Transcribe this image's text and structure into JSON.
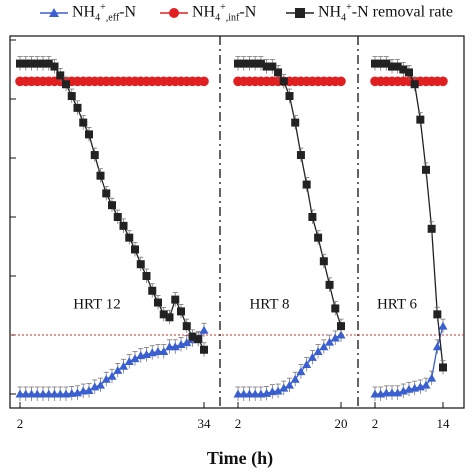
{
  "legend": {
    "eff_species": "NH",
    "eff_sub": "4",
    "eff_sup": "+",
    "eff_tail": ",eff",
    "eff_rest": "-N",
    "inf_species": "NH",
    "inf_sub": "4",
    "inf_sup": "+",
    "inf_tail": ",inf",
    "inf_rest": "-N",
    "rem_species": "NH",
    "rem_sub": "4",
    "rem_sup": "+",
    "rem_rest": "-N removal rate"
  },
  "colors": {
    "effluent": "#3a5fd0",
    "influent": "#e02020",
    "removal": "#222222",
    "reference_line": "#c0302a"
  },
  "chart_data": {
    "type": "line",
    "xlabel": "Time (h)",
    "y_axis_range": [
      0,
      6
    ],
    "reference_line_y": 1.0,
    "grid": false,
    "legend_position": "top",
    "panels": [
      {
        "label": "HRT  12",
        "x_ticks": [
          "2",
          "34"
        ],
        "x": [
          2,
          3,
          4,
          5,
          6,
          7,
          8,
          9,
          10,
          11,
          12,
          13,
          14,
          15,
          16,
          17,
          18,
          19,
          20,
          21,
          22,
          23,
          24,
          25,
          26,
          27,
          28,
          29,
          30,
          31,
          32,
          33,
          34
        ],
        "series": [
          {
            "name": "NH4+,eff-N",
            "values": [
              0.0,
              0.0,
              0.0,
              0.0,
              0.0,
              0.0,
              0.0,
              0.0,
              0.0,
              0.01,
              0.02,
              0.05,
              0.06,
              0.12,
              0.15,
              0.25,
              0.3,
              0.4,
              0.47,
              0.55,
              0.6,
              0.65,
              0.67,
              0.7,
              0.72,
              0.72,
              0.8,
              0.8,
              0.84,
              0.87,
              0.92,
              0.94,
              1.08
            ]
          },
          {
            "name": "NH4+,inf-N",
            "values": [
              5.3,
              5.3,
              5.3,
              5.3,
              5.3,
              5.3,
              5.3,
              5.3,
              5.3,
              5.3,
              5.3,
              5.3,
              5.3,
              5.3,
              5.3,
              5.3,
              5.3,
              5.3,
              5.3,
              5.3,
              5.3,
              5.3,
              5.3,
              5.3,
              5.3,
              5.3,
              5.3,
              5.3,
              5.3,
              5.3,
              5.3,
              5.3,
              5.3
            ]
          },
          {
            "name": "NH4+-N removal rate",
            "values": [
              5.6,
              5.6,
              5.6,
              5.6,
              5.6,
              5.6,
              5.55,
              5.4,
              5.25,
              5.05,
              4.85,
              4.6,
              4.4,
              4.05,
              3.7,
              3.4,
              3.2,
              3.0,
              2.85,
              2.65,
              2.45,
              2.2,
              2.0,
              1.75,
              1.55,
              1.35,
              1.3,
              1.6,
              1.4,
              1.15,
              0.97,
              0.93,
              0.75
            ]
          }
        ]
      },
      {
        "label": "HRT  8",
        "x_ticks": [
          "2",
          "20"
        ],
        "x": [
          2,
          3,
          4,
          5,
          6,
          7,
          8,
          9,
          10,
          11,
          12,
          13,
          14,
          15,
          16,
          17,
          18,
          19,
          20
        ],
        "series": [
          {
            "name": "NH4+,eff-N",
            "values": [
              0.0,
              0.0,
              0.0,
              0.0,
              0.0,
              0.01,
              0.04,
              0.05,
              0.1,
              0.15,
              0.25,
              0.38,
              0.5,
              0.62,
              0.72,
              0.8,
              0.88,
              0.95,
              1.0
            ]
          },
          {
            "name": "NH4+,inf-N",
            "values": [
              5.3,
              5.3,
              5.3,
              5.3,
              5.3,
              5.3,
              5.3,
              5.3,
              5.3,
              5.3,
              5.3,
              5.3,
              5.3,
              5.3,
              5.3,
              5.3,
              5.3,
              5.3,
              5.3
            ]
          },
          {
            "name": "NH4+-N removal rate",
            "values": [
              5.6,
              5.6,
              5.6,
              5.6,
              5.6,
              5.55,
              5.55,
              5.45,
              5.3,
              5.05,
              4.6,
              4.05,
              3.55,
              3.0,
              2.65,
              2.25,
              1.85,
              1.45,
              1.15
            ]
          }
        ]
      },
      {
        "label": "HRT  6",
        "x_ticks": [
          "2",
          "14"
        ],
        "x": [
          2,
          3,
          4,
          5,
          6,
          7,
          8,
          9,
          10,
          11,
          12,
          13,
          14
        ],
        "series": [
          {
            "name": "NH4+,eff-N",
            "values": [
              0.0,
              0.0,
              0.02,
              0.02,
              0.02,
              0.05,
              0.08,
              0.1,
              0.12,
              0.15,
              0.27,
              0.8,
              1.15
            ]
          },
          {
            "name": "NH4+,inf-N",
            "values": [
              5.3,
              5.3,
              5.3,
              5.3,
              5.3,
              5.3,
              5.3,
              5.3,
              5.3,
              5.3,
              5.3,
              5.3,
              5.3
            ]
          },
          {
            "name": "NH4+-N removal rate",
            "values": [
              5.6,
              5.6,
              5.6,
              5.55,
              5.55,
              5.5,
              5.45,
              5.25,
              4.65,
              3.8,
              2.8,
              1.35,
              0.45
            ]
          }
        ]
      }
    ]
  }
}
